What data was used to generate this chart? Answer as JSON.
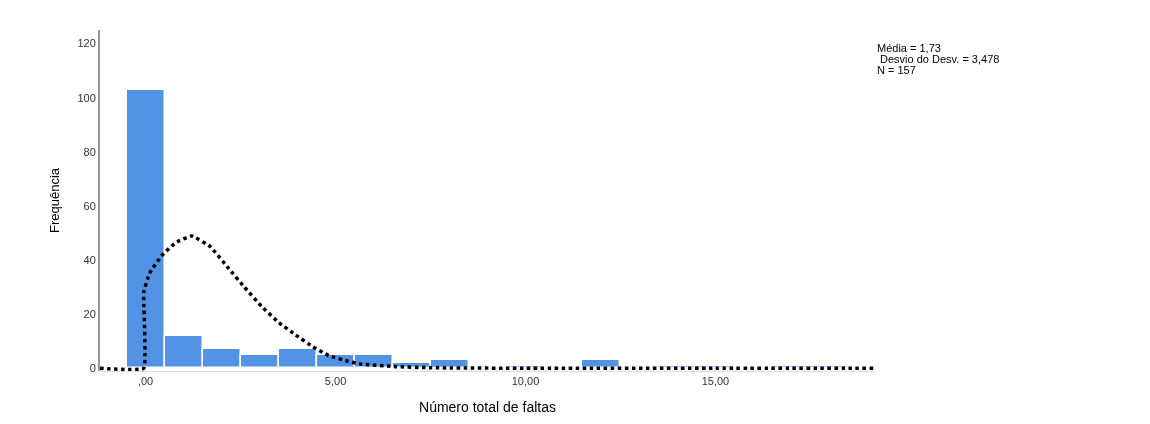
{
  "chart_data": {
    "type": "histogram",
    "xlabel": "Número total de faltas",
    "ylabel": "Frequência",
    "bins": [
      -0.5,
      0.5,
      1.5,
      2.5,
      3.5,
      4.5,
      5.5,
      6.5,
      7.5,
      8.5,
      9.5,
      10.5,
      11.5,
      12.5,
      13.5,
      14.5,
      15.5,
      16.5,
      17.5,
      18.5
    ],
    "values": [
      103,
      12,
      7,
      5,
      7,
      5,
      5,
      2,
      3,
      0,
      1,
      0,
      3,
      0,
      1,
      1,
      0,
      1,
      1
    ],
    "color": "#5393e5",
    "series": [
      {
        "type": "line",
        "color": "#000000",
        "line_style": "dotted",
        "x": [
          -1.2,
          -0.05,
          -0.05,
          0.1,
          0.42,
          0.8,
          1.21,
          1.7,
          2.18,
          2.6,
          3.05,
          3.5,
          3.95,
          4.4,
          4.82,
          5.3,
          5.7,
          6.6,
          7.5,
          10,
          15,
          19.2
        ],
        "values": [
          0,
          0,
          28,
          35,
          41.6,
          46.5,
          48.9,
          45,
          37,
          30,
          22.9,
          17,
          12.3,
          8,
          4.7,
          2.7,
          1.5,
          0.6,
          0.2,
          0,
          0,
          0
        ]
      }
    ],
    "xlim": [
      -1.2,
      19.2
    ],
    "ylim": [
      -1,
      125
    ],
    "xticks": [
      {
        "value": 0,
        "label": ",00"
      },
      {
        "value": 5,
        "label": "5,00"
      },
      {
        "value": 10,
        "label": "10,00"
      },
      {
        "value": 15,
        "label": "15,00"
      }
    ],
    "yticks": [
      0,
      20,
      40,
      60,
      80,
      100,
      120
    ],
    "annotations": [
      "Média = 1,73",
      " Desvio do Desv. = 3,478",
      "N = 157"
    ]
  }
}
